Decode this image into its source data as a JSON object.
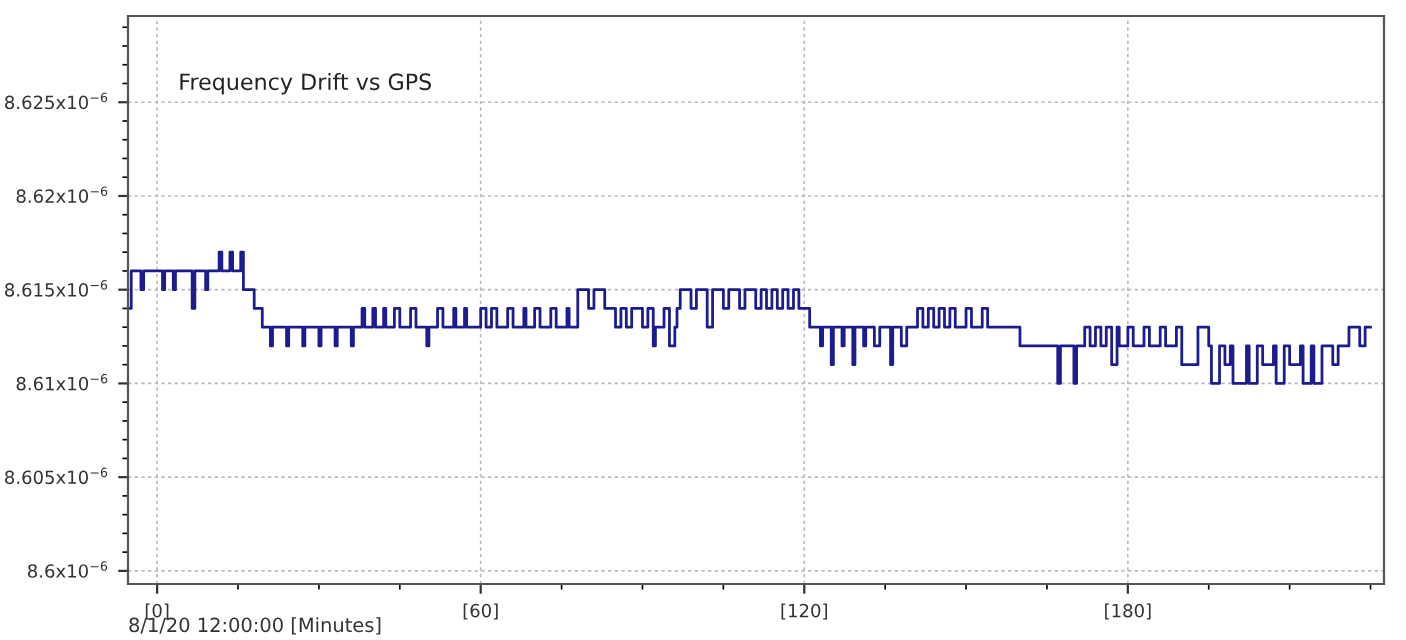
{
  "chart_data": {
    "type": "step",
    "title": "Frequency Drift vs GPS",
    "xlabel": "8/1/20 12:00:00 [Minutes]",
    "xlim": [
      -5.4,
      227.5
    ],
    "ylim": [
      8.5993e-06,
      8.6296e-06
    ],
    "xticks": [
      {
        "value": 0,
        "label": "[0]"
      },
      {
        "value": 60,
        "label": "[60]"
      },
      {
        "value": 120,
        "label": "[120]"
      },
      {
        "value": 180,
        "label": "[180]"
      }
    ],
    "yticks": [
      {
        "value": 8.6e-06,
        "label": "8.6x10$^{−6}$"
      },
      {
        "value": 8.605e-06,
        "label": "8.605x10$^{−6}$"
      },
      {
        "value": 8.61e-06,
        "label": "8.61x10$^{−6}$"
      },
      {
        "value": 8.615e-06,
        "label": "8.615x10$^{−6}$"
      },
      {
        "value": 8.62e-06,
        "label": "8.62x10$^{−6}$"
      },
      {
        "value": 8.625e-06,
        "label": "8.625x10$^{−6}$"
      }
    ],
    "grid": true,
    "series": [
      {
        "color": "#1c1c8f",
        "x": [
          -5.3,
          -4.8,
          -3,
          -2.5,
          1,
          1.4,
          3,
          3.4,
          6.5,
          7,
          9,
          9.4,
          11.5,
          12,
          13.5,
          14,
          15.5,
          16,
          18,
          19.5,
          21,
          21.4,
          24,
          24.4,
          27,
          27.4,
          30,
          30.4,
          33,
          33.4,
          36,
          36.4,
          38,
          38.5,
          40,
          40.5,
          42,
          42.4,
          44,
          45,
          47,
          48,
          50,
          50.4,
          52,
          53,
          55,
          55.4,
          57,
          57.4,
          60,
          61,
          62,
          63,
          65,
          66,
          68,
          68.4,
          70,
          71,
          73,
          74,
          76,
          76.4,
          78,
          80,
          81,
          83,
          85,
          86,
          87,
          88,
          90,
          91,
          92,
          92.4,
          94,
          95,
          96,
          96.4,
          97,
          99,
          100,
          102,
          103,
          105,
          106,
          108,
          109,
          111,
          112,
          113,
          114,
          115,
          116,
          117,
          118,
          119,
          121,
          123,
          123.4,
          125,
          125.4,
          127,
          127.4,
          129,
          129.4,
          131,
          131.4,
          133,
          134,
          136,
          136.4,
          138,
          139,
          141,
          142,
          143,
          144,
          145,
          146,
          147,
          148,
          150,
          151,
          153,
          154,
          160,
          167,
          167.5,
          170,
          170.5,
          172,
          173,
          174,
          175,
          176,
          177,
          178,
          178.4,
          180,
          181,
          183,
          184,
          186,
          187,
          189,
          190,
          193,
          195,
          195.5,
          197,
          198,
          199,
          199.5,
          202,
          202.5,
          204,
          205,
          207,
          207.5,
          209,
          210,
          212,
          212.5,
          214,
          214.5,
          216,
          218,
          219,
          221,
          223,
          224,
          225
        ],
        "values": [
          8.614e-06,
          8.616e-06,
          8.615e-06,
          8.616e-06,
          8.615e-06,
          8.616e-06,
          8.615e-06,
          8.616e-06,
          8.614e-06,
          8.616e-06,
          8.615e-06,
          8.616e-06,
          8.617e-06,
          8.616e-06,
          8.617e-06,
          8.616e-06,
          8.617e-06,
          8.615e-06,
          8.614e-06,
          8.613e-06,
          8.612e-06,
          8.613e-06,
          8.612e-06,
          8.613e-06,
          8.612e-06,
          8.613e-06,
          8.612e-06,
          8.613e-06,
          8.612e-06,
          8.613e-06,
          8.612e-06,
          8.613e-06,
          8.614e-06,
          8.613e-06,
          8.614e-06,
          8.613e-06,
          8.614e-06,
          8.613e-06,
          8.614e-06,
          8.613e-06,
          8.614e-06,
          8.613e-06,
          8.612e-06,
          8.613e-06,
          8.614e-06,
          8.613e-06,
          8.614e-06,
          8.613e-06,
          8.614e-06,
          8.613e-06,
          8.614e-06,
          8.613e-06,
          8.614e-06,
          8.613e-06,
          8.614e-06,
          8.613e-06,
          8.614e-06,
          8.613e-06,
          8.614e-06,
          8.613e-06,
          8.614e-06,
          8.613e-06,
          8.614e-06,
          8.613e-06,
          8.615e-06,
          8.614e-06,
          8.615e-06,
          8.614e-06,
          8.613e-06,
          8.614e-06,
          8.613e-06,
          8.614e-06,
          8.613e-06,
          8.614e-06,
          8.612e-06,
          8.613e-06,
          8.614e-06,
          8.612e-06,
          8.613e-06,
          8.614e-06,
          8.615e-06,
          8.614e-06,
          8.615e-06,
          8.613e-06,
          8.615e-06,
          8.614e-06,
          8.615e-06,
          8.614e-06,
          8.615e-06,
          8.614e-06,
          8.615e-06,
          8.614e-06,
          8.615e-06,
          8.614e-06,
          8.615e-06,
          8.614e-06,
          8.615e-06,
          8.614e-06,
          8.613e-06,
          8.612e-06,
          8.613e-06,
          8.611e-06,
          8.613e-06,
          8.612e-06,
          8.613e-06,
          8.611e-06,
          8.613e-06,
          8.612e-06,
          8.613e-06,
          8.612e-06,
          8.613e-06,
          8.611e-06,
          8.613e-06,
          8.612e-06,
          8.613e-06,
          8.614e-06,
          8.613e-06,
          8.614e-06,
          8.613e-06,
          8.614e-06,
          8.613e-06,
          8.614e-06,
          8.613e-06,
          8.614e-06,
          8.613e-06,
          8.614e-06,
          8.613e-06,
          8.612e-06,
          8.61e-06,
          8.612e-06,
          8.61e-06,
          8.612e-06,
          8.613e-06,
          8.612e-06,
          8.613e-06,
          8.612e-06,
          8.613e-06,
          8.611e-06,
          8.613e-06,
          8.612e-06,
          8.613e-06,
          8.612e-06,
          8.613e-06,
          8.612e-06,
          8.613e-06,
          8.612e-06,
          8.613e-06,
          8.611e-06,
          8.613e-06,
          8.612e-06,
          8.61e-06,
          8.612e-06,
          8.611e-06,
          8.612e-06,
          8.61e-06,
          8.612e-06,
          8.61e-06,
          8.612e-06,
          8.611e-06,
          8.612e-06,
          8.61e-06,
          8.612e-06,
          8.611e-06,
          8.612e-06,
          8.61e-06,
          8.612e-06,
          8.61e-06,
          8.612e-06,
          8.611e-06,
          8.612e-06,
          8.613e-06,
          8.612e-06,
          8.613e-06,
          8.613e-06
        ]
      }
    ]
  }
}
